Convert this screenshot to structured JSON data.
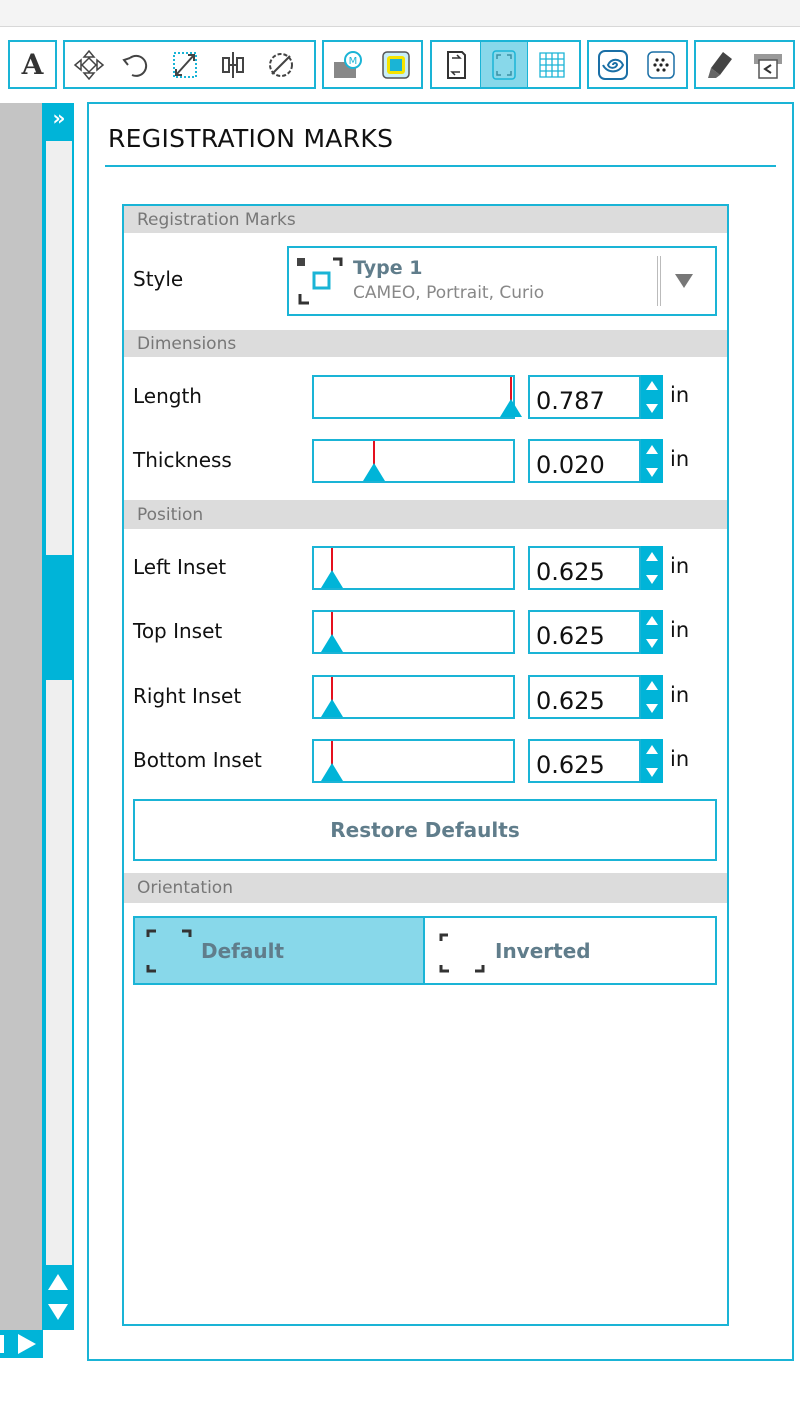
{
  "toolbar": {
    "groups": [
      {
        "items": [
          {
            "icon": "text-icon",
            "glyph": "A"
          }
        ]
      },
      {
        "items": [
          {
            "icon": "move-icon"
          },
          {
            "icon": "rotate-icon"
          },
          {
            "icon": "scale-icon"
          },
          {
            "icon": "align-icon"
          },
          {
            "icon": "replicate-icon"
          }
        ]
      },
      {
        "items": [
          {
            "icon": "library-icon",
            "glyph": "M"
          },
          {
            "icon": "offset-icon"
          }
        ]
      },
      {
        "items": [
          {
            "icon": "page-setup-icon"
          },
          {
            "icon": "registration-marks-icon",
            "active": true
          },
          {
            "icon": "grid-icon"
          }
        ]
      },
      {
        "items": [
          {
            "icon": "trace-icon"
          },
          {
            "icon": "dot-pattern-icon"
          }
        ]
      },
      {
        "items": [
          {
            "icon": "sketch-pen-icon"
          },
          {
            "icon": "send-to-cutter-icon"
          }
        ]
      }
    ]
  },
  "sidebar": {
    "expand_label": "»"
  },
  "panel": {
    "title": "REGISTRATION MARKS",
    "sections": {
      "registration": "Registration Marks",
      "dimensions": "Dimensions",
      "position": "Position",
      "orientation": "Orientation"
    },
    "style": {
      "label": "Style",
      "selected_title": "Type 1",
      "selected_subtitle": "CAMEO, Portrait, Curio"
    },
    "fields": [
      {
        "label": "Length",
        "value": "0.787",
        "unit": "in",
        "slider_fraction": 0.99
      },
      {
        "label": "Thickness",
        "value": "0.020",
        "unit": "in",
        "slider_fraction": 0.3
      },
      {
        "label": "Left Inset",
        "value": "0.625",
        "unit": "in",
        "slider_fraction": 0.09
      },
      {
        "label": "Top Inset",
        "value": "0.625",
        "unit": "in",
        "slider_fraction": 0.09
      },
      {
        "label": "Right Inset",
        "value": "0.625",
        "unit": "in",
        "slider_fraction": 0.09
      },
      {
        "label": "Bottom Inset",
        "value": "0.625",
        "unit": "in",
        "slider_fraction": 0.09
      }
    ],
    "restore_label": "Restore Defaults",
    "orientation": {
      "default_label": "Default",
      "inverted_label": "Inverted",
      "selected": "Default"
    }
  },
  "colors": {
    "accent": "#1ab4d6",
    "active": "#88d8ea",
    "slider_marker": "#e5101e",
    "section_bg": "#dcdcdc"
  }
}
